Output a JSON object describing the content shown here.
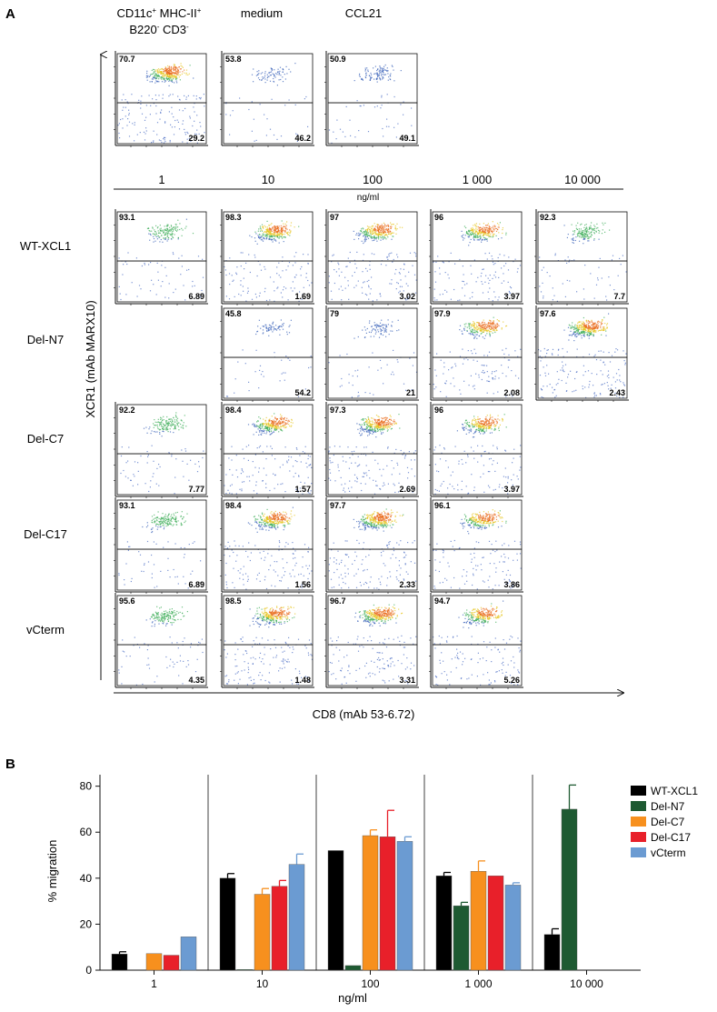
{
  "panel_a": {
    "label": "A",
    "top_headers": {
      "gated_line1": "CD11c",
      "gated_sup1": "+",
      "gated_mid1": " MHC-II",
      "gated_sup2": "+",
      "gated_line2": "B220",
      "gated_sup3": "-",
      "gated_mid2": " CD3",
      "gated_sup4": "-",
      "medium": "medium",
      "ccl21": "CCL21"
    },
    "control_plots": [
      {
        "id": "gated",
        "upper": "70.7",
        "lower": "29.2",
        "density": 1.0
      },
      {
        "id": "medium",
        "upper": "53.8",
        "lower": "46.2",
        "density": 0.12
      },
      {
        "id": "ccl21",
        "upper": "50.9",
        "lower": "49.1",
        "density": 0.22
      }
    ],
    "concentrations": [
      "1",
      "10",
      "100",
      "1 000",
      "10 000"
    ],
    "conc_unit": "ng/ml",
    "y_axis_label": "XCR1 (mAb MARX10)",
    "x_axis_label": "CD8 (mAb 53-6.72)",
    "rows": [
      {
        "name": "WT-XCL1",
        "plots": [
          {
            "col": 0,
            "upper": "93.1",
            "lower": "6.89",
            "density": 0.35
          },
          {
            "col": 1,
            "upper": "98.3",
            "lower": "1.69",
            "density": 0.8
          },
          {
            "col": 2,
            "upper": "97",
            "lower": "3.02",
            "density": 0.85
          },
          {
            "col": 3,
            "upper": "96",
            "lower": "3.97",
            "density": 0.75
          },
          {
            "col": 4,
            "upper": "92.3",
            "lower": "7.7",
            "density": 0.35
          }
        ]
      },
      {
        "name": "Del-N7",
        "plots": [
          {
            "col": 1,
            "upper": "45.8",
            "lower": "54.2",
            "density": 0.1
          },
          {
            "col": 2,
            "upper": "79",
            "lower": "21",
            "density": 0.15
          },
          {
            "col": 3,
            "upper": "97.9",
            "lower": "2.08",
            "density": 0.7
          },
          {
            "col": 4,
            "upper": "97.6",
            "lower": "2.43",
            "density": 1.0
          }
        ]
      },
      {
        "name": "Del-C7",
        "plots": [
          {
            "col": 0,
            "upper": "92.2",
            "lower": "7.77",
            "density": 0.35
          },
          {
            "col": 1,
            "upper": "98.4",
            "lower": "1.57",
            "density": 0.8
          },
          {
            "col": 2,
            "upper": "97.3",
            "lower": "2.69",
            "density": 0.9
          },
          {
            "col": 3,
            "upper": "96",
            "lower": "3.97",
            "density": 0.75
          }
        ]
      },
      {
        "name": "Del-C17",
        "plots": [
          {
            "col": 0,
            "upper": "93.1",
            "lower": "6.89",
            "density": 0.35
          },
          {
            "col": 1,
            "upper": "98.4",
            "lower": "1.56",
            "density": 0.85
          },
          {
            "col": 2,
            "upper": "97.7",
            "lower": "2.33",
            "density": 0.95
          },
          {
            "col": 3,
            "upper": "96.1",
            "lower": "3.86",
            "density": 0.75
          }
        ]
      },
      {
        "name": "vCterm",
        "plots": [
          {
            "col": 0,
            "upper": "95.6",
            "lower": "4.35",
            "density": 0.35
          },
          {
            "col": 1,
            "upper": "98.5",
            "lower": "1.48",
            "density": 0.85
          },
          {
            "col": 2,
            "upper": "96.7",
            "lower": "3.31",
            "density": 0.9
          },
          {
            "col": 3,
            "upper": "94.7",
            "lower": "5.26",
            "density": 0.75
          }
        ]
      }
    ]
  },
  "chart_data": {
    "type": "bar",
    "label": "B",
    "title": "",
    "xlabel": "ng/ml",
    "ylabel": "% migration",
    "categories": [
      "1",
      "10",
      "100",
      "1 000",
      "10 000"
    ],
    "ylim": [
      0,
      85
    ],
    "yticks": [
      0,
      20,
      40,
      60,
      80
    ],
    "legend_position": "right",
    "series": [
      {
        "name": "WT-XCL1",
        "color": "#000000",
        "values": [
          7,
          40,
          52,
          41,
          15.5
        ],
        "errors": [
          1,
          2,
          0,
          1.5,
          2.5
        ]
      },
      {
        "name": "Del-N7",
        "color": "#1e5a32",
        "values": [
          null,
          0.3,
          2,
          28,
          70
        ],
        "errors": [
          0,
          0,
          0,
          1.5,
          10.5
        ]
      },
      {
        "name": "Del-C7",
        "color": "#f7901e",
        "values": [
          7.2,
          33,
          58.5,
          43,
          null
        ],
        "errors": [
          0,
          2.5,
          2.5,
          4.5,
          0
        ]
      },
      {
        "name": "Del-C17",
        "color": "#e8202a",
        "values": [
          6.5,
          36.5,
          58,
          41,
          null
        ],
        "errors": [
          0,
          2.5,
          11.5,
          0,
          0
        ]
      },
      {
        "name": "vCterm",
        "color": "#6b9bd2",
        "values": [
          14.5,
          46,
          56,
          37,
          null
        ],
        "errors": [
          0,
          4.5,
          2,
          1,
          0
        ]
      }
    ]
  }
}
